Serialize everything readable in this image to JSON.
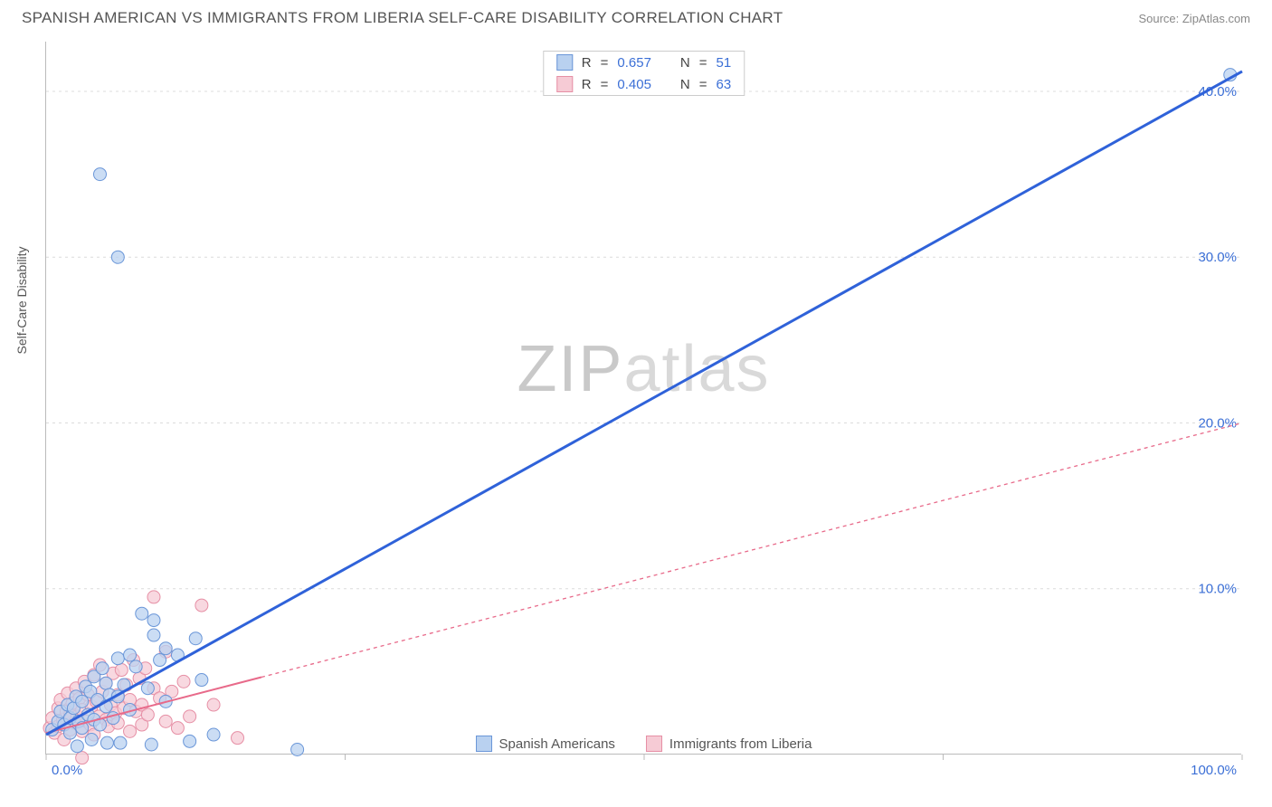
{
  "header": {
    "title": "SPANISH AMERICAN VS IMMIGRANTS FROM LIBERIA SELF-CARE DISABILITY CORRELATION CHART",
    "source": "Source: ZipAtlas.com"
  },
  "watermark": "ZIPatlas",
  "ylabel": "Self-Care Disability",
  "chart": {
    "type": "scatter",
    "xlim": [
      0,
      100
    ],
    "ylim": [
      0,
      43
    ],
    "x_ticks": [
      0,
      25,
      50,
      75,
      100
    ],
    "x_tick_labels": [
      "0.0%",
      "",
      "",
      "",
      "100.0%"
    ],
    "y_ticks": [
      10,
      20,
      30,
      40
    ],
    "y_tick_labels": [
      "10.0%",
      "20.0%",
      "30.0%",
      "40.0%"
    ],
    "y_grid_color": "#dcdcdc",
    "axis_color": "#bbbbbb",
    "tick_color": "#bbbbbb",
    "background_color": "#ffffff",
    "xlabel_color": "#3b6fd6",
    "ylabel_color": "#3b6fd6",
    "series": [
      {
        "name": "Spanish Americans",
        "marker_fill": "#b9d1f0",
        "marker_stroke": "#6a96d8",
        "marker_radius": 7,
        "line_color": "#2f62d9",
        "line_width": 3,
        "line_dash": "none",
        "trend": {
          "x1": 0,
          "y1": 1.2,
          "x2": 100,
          "y2": 41.2
        },
        "trend_extent": {
          "x_max": 100
        },
        "r": "0.657",
        "n": "51",
        "points": [
          [
            0.5,
            1.5
          ],
          [
            1,
            2
          ],
          [
            1.2,
            2.6
          ],
          [
            1.5,
            1.8
          ],
          [
            1.8,
            3
          ],
          [
            2,
            2.2
          ],
          [
            2,
            1.3
          ],
          [
            2.3,
            2.8
          ],
          [
            2.5,
            3.5
          ],
          [
            2.7,
            2
          ],
          [
            3,
            3.2
          ],
          [
            3,
            1.6
          ],
          [
            3.3,
            4.1
          ],
          [
            3.5,
            2.4
          ],
          [
            3.7,
            3.8
          ],
          [
            4,
            2.1
          ],
          [
            4,
            4.7
          ],
          [
            4.3,
            3.3
          ],
          [
            4.5,
            1.8
          ],
          [
            4.7,
            5.2
          ],
          [
            5,
            2.9
          ],
          [
            5,
            4.3
          ],
          [
            5.3,
            3.6
          ],
          [
            5.6,
            2.2
          ],
          [
            6,
            5.8
          ],
          [
            6,
            3.5
          ],
          [
            6.5,
            4.2
          ],
          [
            7,
            6.0
          ],
          [
            7,
            2.7
          ],
          [
            7.5,
            5.3
          ],
          [
            8,
            8.5
          ],
          [
            8.5,
            4.0
          ],
          [
            9,
            7.2
          ],
          [
            9,
            8.1
          ],
          [
            9.5,
            5.7
          ],
          [
            10,
            6.4
          ],
          [
            10,
            3.2
          ],
          [
            11,
            6.0
          ],
          [
            12,
            0.8
          ],
          [
            12.5,
            7.0
          ],
          [
            13,
            4.5
          ],
          [
            14,
            1.2
          ],
          [
            21,
            0.3
          ],
          [
            4.5,
            35.0
          ],
          [
            6.0,
            30.0
          ],
          [
            99,
            41.0
          ],
          [
            3.8,
            0.9
          ],
          [
            6.2,
            0.7
          ],
          [
            8.8,
            0.6
          ],
          [
            2.6,
            0.5
          ],
          [
            5.1,
            0.7
          ]
        ]
      },
      {
        "name": "Immigrants from Liberia",
        "marker_fill": "#f6cbd5",
        "marker_stroke": "#e68fa5",
        "marker_radius": 7,
        "line_color": "#e86a8a",
        "line_width": 2,
        "line_dash": "4 4",
        "trend": {
          "x1": 0,
          "y1": 1.3,
          "x2": 100,
          "y2": 20.0
        },
        "trend_extent": {
          "x_solid_max": 18
        },
        "r": "0.405",
        "n": "63",
        "points": [
          [
            0.3,
            1.6
          ],
          [
            0.5,
            2.2
          ],
          [
            0.7,
            1.3
          ],
          [
            1,
            2.8
          ],
          [
            1,
            1.7
          ],
          [
            1.2,
            3.3
          ],
          [
            1.4,
            2.1
          ],
          [
            1.5,
            0.9
          ],
          [
            1.7,
            2.6
          ],
          [
            1.8,
            3.7
          ],
          [
            2,
            1.5
          ],
          [
            2,
            2.4
          ],
          [
            2.2,
            3.1
          ],
          [
            2.4,
            1.9
          ],
          [
            2.5,
            4.0
          ],
          [
            2.6,
            2.3
          ],
          [
            2.8,
            3.4
          ],
          [
            3,
            1.4
          ],
          [
            3,
            2.7
          ],
          [
            3.2,
            4.4
          ],
          [
            3.4,
            2.0
          ],
          [
            3.5,
            3.6
          ],
          [
            3.7,
            1.8
          ],
          [
            3.8,
            2.9
          ],
          [
            4,
            4.8
          ],
          [
            4,
            1.2
          ],
          [
            4.2,
            3.2
          ],
          [
            4.4,
            2.3
          ],
          [
            4.5,
            5.4
          ],
          [
            4.7,
            3.8
          ],
          [
            5,
            2.1
          ],
          [
            5,
            4.3
          ],
          [
            5.2,
            1.7
          ],
          [
            5.4,
            3.0
          ],
          [
            5.6,
            4.9
          ],
          [
            5.8,
            2.5
          ],
          [
            6,
            3.6
          ],
          [
            6,
            1.9
          ],
          [
            6.3,
            5.1
          ],
          [
            6.5,
            2.8
          ],
          [
            6.7,
            4.2
          ],
          [
            7,
            3.3
          ],
          [
            7,
            1.4
          ],
          [
            7.3,
            5.7
          ],
          [
            7.5,
            2.6
          ],
          [
            7.8,
            4.6
          ],
          [
            8,
            3.0
          ],
          [
            8,
            1.8
          ],
          [
            8.3,
            5.2
          ],
          [
            8.5,
            2.4
          ],
          [
            9,
            4.0
          ],
          [
            9,
            9.5
          ],
          [
            9.5,
            3.4
          ],
          [
            10,
            2.0
          ],
          [
            10,
            6.2
          ],
          [
            10.5,
            3.8
          ],
          [
            11,
            1.6
          ],
          [
            11.5,
            4.4
          ],
          [
            12,
            2.3
          ],
          [
            13,
            9.0
          ],
          [
            14,
            3.0
          ],
          [
            16,
            1.0
          ],
          [
            3.0,
            -0.2
          ]
        ]
      }
    ]
  },
  "stats_legend_labels": {
    "r_prefix": "R",
    "eq": "=",
    "n_prefix": "N"
  },
  "bottom_legend": [
    {
      "label": "Spanish Americans",
      "fill": "#b9d1f0",
      "stroke": "#6a96d8"
    },
    {
      "label": "Immigrants from Liberia",
      "fill": "#f6cbd5",
      "stroke": "#e68fa5"
    }
  ]
}
